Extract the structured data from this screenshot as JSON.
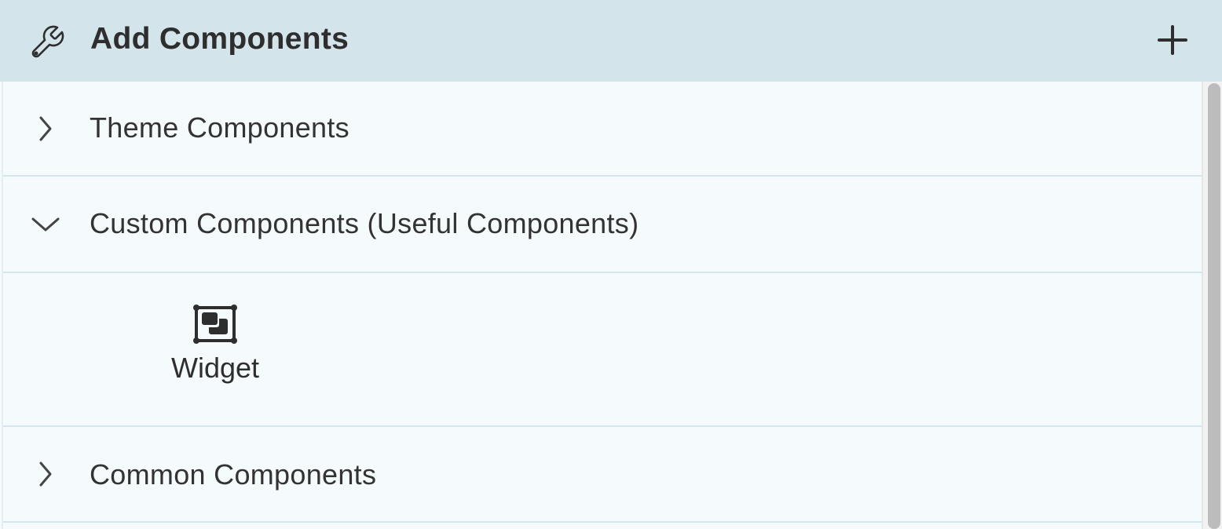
{
  "header": {
    "title": "Add Components",
    "icon": "wrench-icon",
    "add_icon": "plus-icon"
  },
  "sections": [
    {
      "label": "Theme Components",
      "expanded": false
    },
    {
      "label": "Custom Components (Useful Components)",
      "expanded": true,
      "items": [
        {
          "label": "Widget",
          "icon": "widget-icon"
        }
      ]
    },
    {
      "label": "Common Components",
      "expanded": false
    }
  ]
}
